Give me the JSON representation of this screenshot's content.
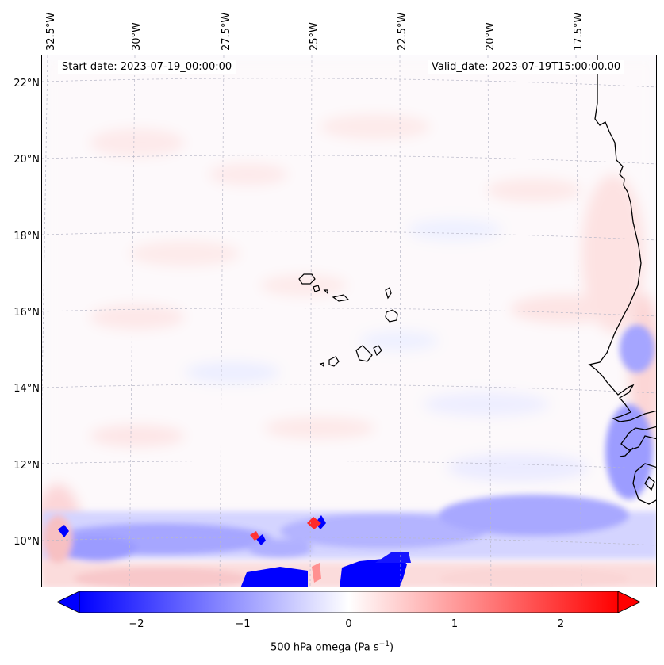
{
  "map": {
    "start_date": "Start date: 2023-07-19_00:00:00",
    "valid_date": "Valid_date: 2023-07-19T15:00:00.00",
    "lon_labels": [
      "32.5°W",
      "30°W",
      "27.5°W",
      "25°W",
      "22.5°W",
      "20°W",
      "17.5°W"
    ],
    "lat_labels": [
      "22°N",
      "20°N",
      "18°N",
      "16°N",
      "14°N",
      "12°N",
      "10°N"
    ],
    "field": "500 hPa omega"
  },
  "colorbar": {
    "ticks": [
      "−2",
      "−1",
      "0",
      "1",
      "2"
    ],
    "range": [
      -2.5,
      2.5
    ],
    "label": "500 hPa omega (Pa s",
    "label_exp": "−1",
    "label_close": ")",
    "neg_color": "#0000ff",
    "pos_color": "#ff0000",
    "mid_color": "#ffffff"
  }
}
